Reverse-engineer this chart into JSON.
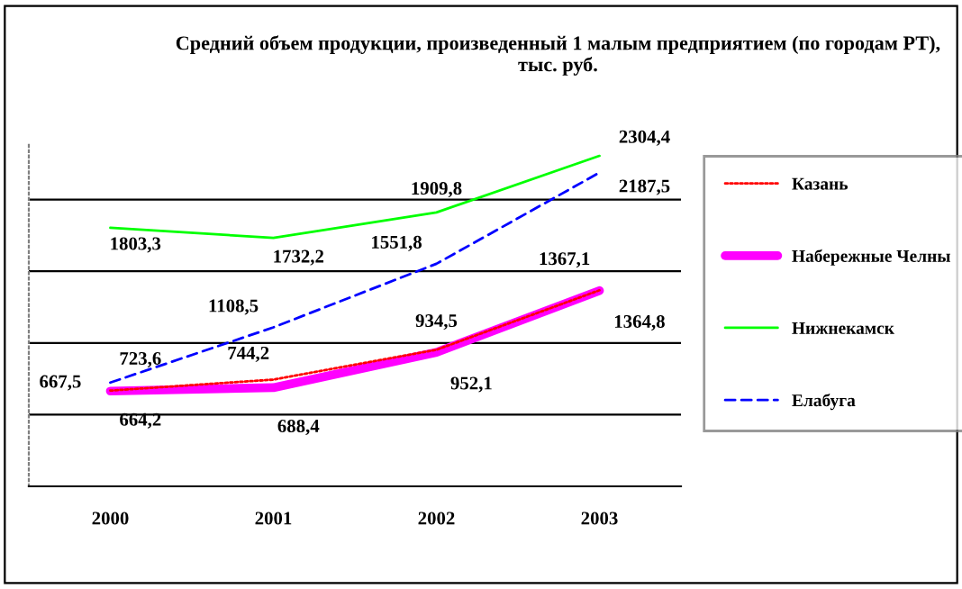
{
  "chart_data": {
    "type": "line",
    "title": "Средний объем продукции, произведенный 1 малым предприятием (по городам РТ), тыс. руб.",
    "categories": [
      "2000",
      "2001",
      "2002",
      "2003"
    ],
    "series": [
      {
        "name": "Казань",
        "color": "#ff0000",
        "line_style": "dotted",
        "values": [
          667.5,
          744.2,
          952.1,
          1367.1
        ],
        "value_labels": [
          "667,5",
          "744,2",
          "952,1",
          "1367,1"
        ]
      },
      {
        "name": "Набережные Челны",
        "color": "#ff00ff",
        "line_style": "solid",
        "values": [
          664.2,
          688.4,
          934.5,
          1364.8
        ],
        "value_labels": [
          "664,2",
          "688,4",
          "934,5",
          "1364,8"
        ]
      },
      {
        "name": "Нижнекамск",
        "color": "#00ff00",
        "line_style": "solid",
        "values": [
          1803.3,
          1732.2,
          1909.8,
          2304.4
        ],
        "value_labels": [
          "1803,3",
          "1732,2",
          "1909,8",
          "2304,4"
        ]
      },
      {
        "name": "Елабуга",
        "color": "#0000ff",
        "line_style": "dashed",
        "values": [
          723.6,
          1108.5,
          1551.8,
          2187.5
        ],
        "value_labels": [
          "723,6",
          "1108,5",
          "1551,8",
          "2187,5"
        ]
      }
    ],
    "tick_labels": "x",
    "grid": "y",
    "legend": "right",
    "marker": "none"
  }
}
